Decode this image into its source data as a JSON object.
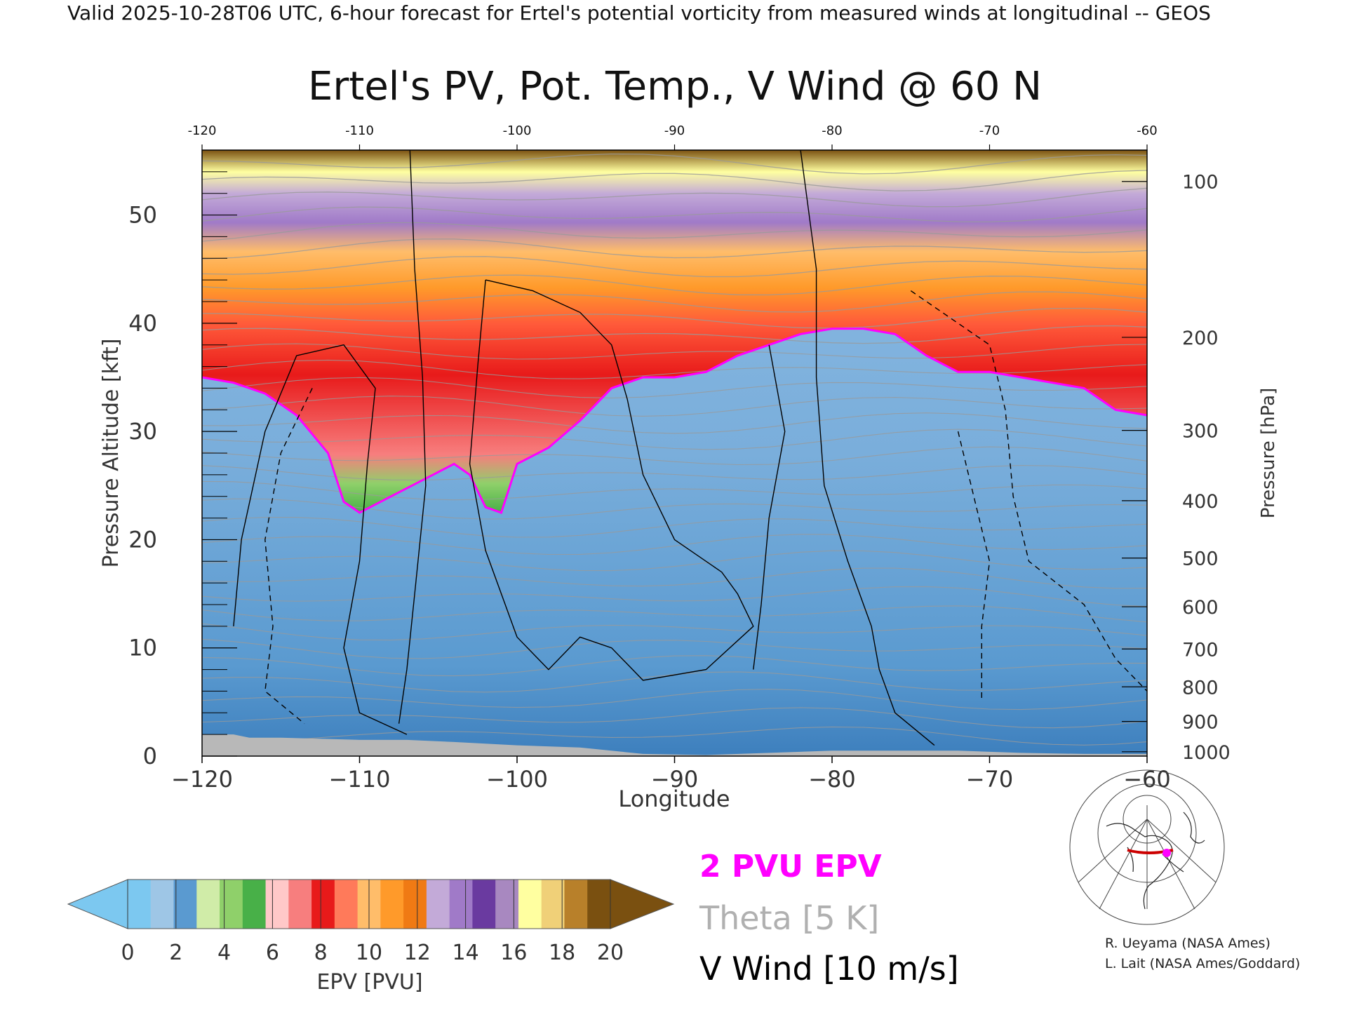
{
  "header": "Valid 2025-10-28T06 UTC, 6-hour forecast for Ertel's potential vorticity from measured winds at longitudinal -- GEOS",
  "chart_data": {
    "type": "heatmap",
    "title": "Ertel's PV, Pot. Temp., V Wind @ 60 N",
    "xlabel": "Longitude",
    "ylabel": "Pressure Altitude [kft]",
    "ylabel_right": "Pressure [hPa]",
    "xlim": [
      -120,
      -60
    ],
    "ylim": [
      0,
      56
    ],
    "x_ticks": [
      -120,
      -110,
      -100,
      -90,
      -80,
      -70,
      -60
    ],
    "x_ticks_top": [
      -120,
      -110,
      -100,
      -90,
      -80,
      -70,
      -60
    ],
    "y_ticks": [
      0,
      10,
      20,
      30,
      40,
      50
    ],
    "pressure_ticks": [
      {
        "hPa": 100,
        "kft": 53.1
      },
      {
        "hPa": 200,
        "kft": 38.7
      },
      {
        "hPa": 300,
        "kft": 30.1
      },
      {
        "hPa": 400,
        "kft": 23.6
      },
      {
        "hPa": 500,
        "kft": 18.3
      },
      {
        "hPa": 600,
        "kft": 13.8
      },
      {
        "hPa": 700,
        "kft": 9.9
      },
      {
        "hPa": 800,
        "kft": 6.4
      },
      {
        "hPa": 900,
        "kft": 3.2
      },
      {
        "hPa": 1000,
        "kft": 0.4
      }
    ],
    "tropopause_2pvu_kft": [
      [
        -120,
        35
      ],
      [
        -118,
        34.5
      ],
      [
        -116,
        33.5
      ],
      [
        -114,
        31.5
      ],
      [
        -112,
        28
      ],
      [
        -111,
        23.5
      ],
      [
        -110,
        22.5
      ],
      [
        -108,
        24
      ],
      [
        -106,
        25.5
      ],
      [
        -104,
        27
      ],
      [
        -103,
        26
      ],
      [
        -102,
        23
      ],
      [
        -101,
        22.5
      ],
      [
        -100,
        27
      ],
      [
        -98,
        28.5
      ],
      [
        -96,
        31
      ],
      [
        -94,
        34
      ],
      [
        -92,
        35
      ],
      [
        -90,
        35
      ],
      [
        -88,
        35.5
      ],
      [
        -86,
        37
      ],
      [
        -84,
        38
      ],
      [
        -82,
        39
      ],
      [
        -80,
        39.5
      ],
      [
        -78,
        39.5
      ],
      [
        -76,
        39
      ],
      [
        -74,
        37
      ],
      [
        -72,
        35.5
      ],
      [
        -70,
        35.5
      ],
      [
        -68,
        35
      ],
      [
        -66,
        34.5
      ],
      [
        -64,
        34
      ],
      [
        -62,
        32
      ],
      [
        -60,
        31.5
      ]
    ],
    "terrain_kft": [
      [
        -120,
        2
      ],
      [
        -118,
        2
      ],
      [
        -117,
        1.7
      ],
      [
        -115,
        1.7
      ],
      [
        -110,
        1.5
      ],
      [
        -107,
        1.5
      ],
      [
        -104,
        1.3
      ],
      [
        -100,
        1.0
      ],
      [
        -96,
        0.8
      ],
      [
        -92,
        0.2
      ],
      [
        -88,
        0.1
      ],
      [
        -80,
        0.5
      ],
      [
        -76,
        0.5
      ],
      [
        -72,
        0.5
      ],
      [
        -68,
        0.3
      ],
      [
        -64,
        0.2
      ],
      [
        -60,
        0.2
      ]
    ],
    "colorbar": {
      "label": "EPV [PVU]",
      "ticks": [
        0,
        2,
        4,
        6,
        8,
        10,
        12,
        14,
        16,
        18,
        20
      ],
      "colors": [
        "#7cc8f0",
        "#9ec6e6",
        "#5a9ad0",
        "#d0eca8",
        "#8fd06a",
        "#48b048",
        "#ffc8c8",
        "#f77e7e",
        "#e81a1a",
        "#ff7a5a",
        "#ffbd6a",
        "#ff9a2a",
        "#f07a14",
        "#c3aad8",
        "#a07ac8",
        "#6a3aa0",
        "#a888c0",
        "#ffffa0",
        "#f0d078",
        "#b8802a",
        "#7a5010"
      ],
      "under_color": "#7cc8f0",
      "over_color": "#7a5010"
    },
    "legend": [
      {
        "label": "2 PVU EPV",
        "color": "#ff00ff"
      },
      {
        "label": "Theta [5 K]",
        "color": "#b0b0b0"
      },
      {
        "label": "V Wind [10 m/s]",
        "color": "#000000"
      }
    ]
  },
  "credits": [
    "R. Ueyama (NASA Ames)",
    "L. Lait (NASA Ames/Goddard)"
  ],
  "inset_map_label": "location map"
}
